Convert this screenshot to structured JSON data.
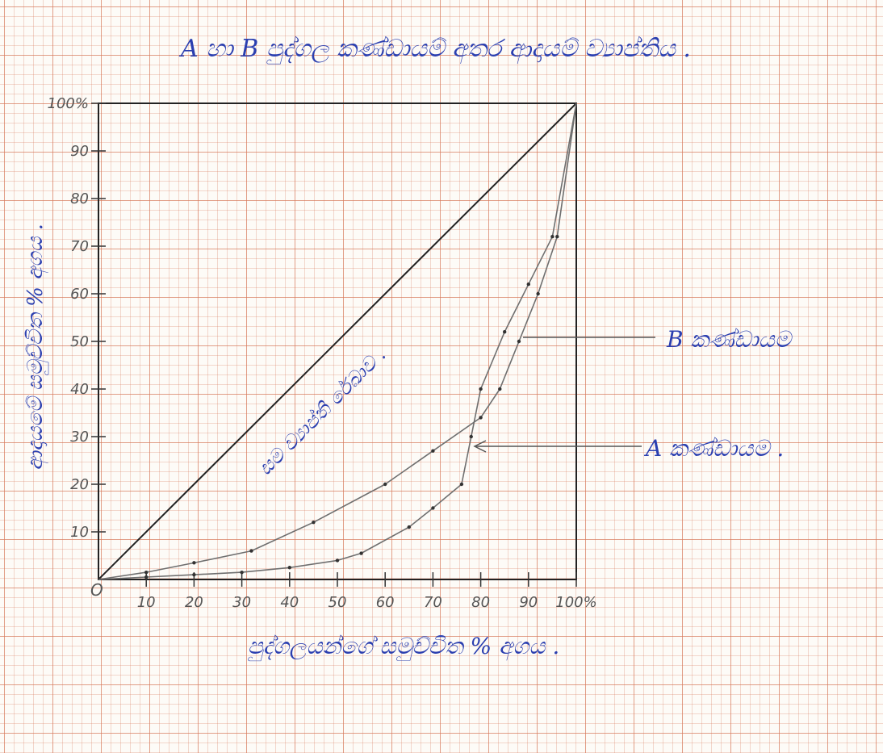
{
  "chart_data": {
    "type": "line",
    "title": "A හා B පුද්ගල කණ්ඩායම් අතර ආදායම් ව්‍යාප්තිය .",
    "xlabel": "පුද්ගලයන්ගේ සමුච්චිත % අගය .",
    "ylabel": "ආදායමේ සමුච්චිත % අගය .",
    "xlim": [
      0,
      100
    ],
    "ylim": [
      0,
      100
    ],
    "x_ticks": [
      "10",
      "20",
      "30",
      "40",
      "50",
      "60",
      "70",
      "80",
      "90",
      "100%"
    ],
    "y_ticks": [
      "10",
      "20",
      "30",
      "40",
      "50",
      "60",
      "70",
      "80",
      "90",
      "100%"
    ],
    "origin_label": "O",
    "grid": true,
    "equality_line": {
      "label": "සම ව්‍යාප්ති රේඛාව .",
      "x": [
        0,
        100
      ],
      "y": [
        0,
        100
      ]
    },
    "series": [
      {
        "name": "B කණ්ඩායම",
        "x": [
          0,
          10,
          20,
          32,
          45,
          60,
          70,
          80,
          84,
          88,
          92,
          96,
          100
        ],
        "y": [
          0,
          1.5,
          3.5,
          6,
          12,
          20,
          27,
          34,
          40,
          50,
          60,
          72,
          100
        ]
      },
      {
        "name": "A කණ්ඩායම",
        "x": [
          0,
          10,
          20,
          30,
          40,
          50,
          55,
          65,
          70,
          76,
          78,
          80,
          85,
          90,
          95,
          100
        ],
        "y": [
          0,
          0.5,
          1,
          1.5,
          2.5,
          4,
          5.5,
          11,
          15,
          20,
          30,
          40,
          52,
          62,
          72,
          100
        ]
      }
    ],
    "annotations": [
      {
        "text": "B කණ්ඩායම",
        "points_to": "B කණ්ඩායම"
      },
      {
        "text": "A කණ්ඩායම .",
        "points_to": "A කණ්ඩායම"
      }
    ],
    "colors": {
      "ink": "#2b3fb0",
      "pencil": "#555555",
      "axes": "#222222"
    }
  }
}
